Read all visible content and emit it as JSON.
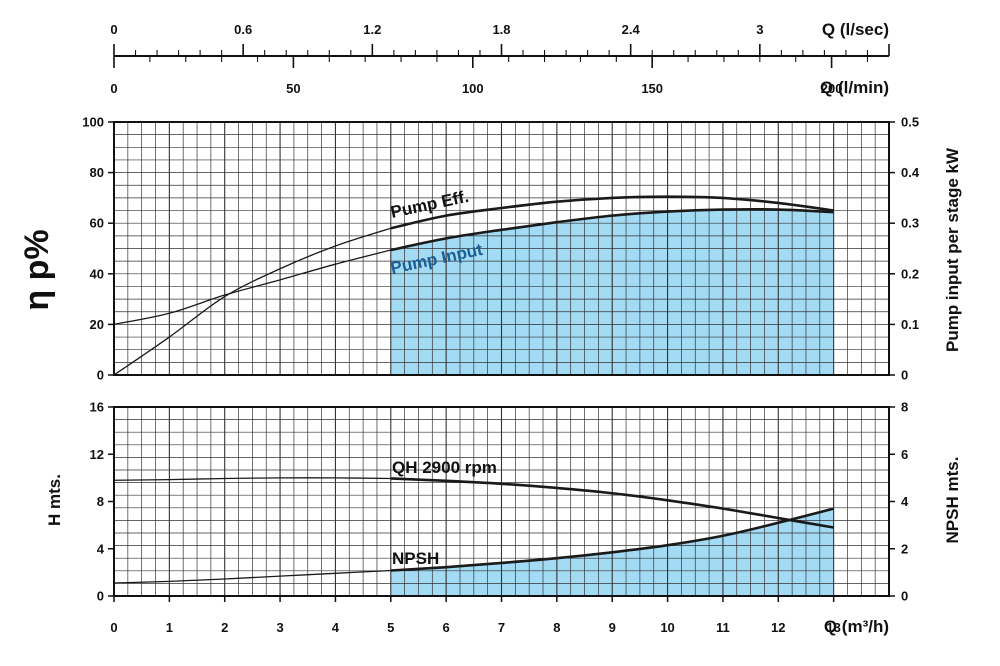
{
  "chart_data": [
    {
      "type": "axis",
      "name": "top-flow-axes",
      "axes": [
        {
          "label": "Q (l/sec)",
          "range": [
            0,
            3.6
          ],
          "ticks": [
            0,
            0.6,
            1.2,
            1.8,
            2.4,
            3
          ],
          "tick_labels": [
            "0",
            "0.6",
            "1.2",
            "1.8",
            "2.4",
            "3"
          ]
        },
        {
          "label": "Q (l/min)",
          "range": [
            0,
            216
          ],
          "ticks": [
            0,
            50,
            100,
            150,
            200
          ],
          "tick_labels": [
            "0",
            "50",
            "100",
            "150",
            "200"
          ]
        }
      ]
    },
    {
      "type": "line",
      "name": "efficiency-power-chart",
      "xlim": [
        0,
        14
      ],
      "ylabel": "η p%",
      "ylim": [
        0,
        100
      ],
      "yticks": [
        "0",
        "20",
        "40",
        "60",
        "80",
        "100"
      ],
      "y2label": "Pump input per stage kW",
      "y2lim": [
        0,
        0.5
      ],
      "y2ticks": [
        "0",
        "0.1",
        "0.2",
        "0.3",
        "0.4",
        "0.5"
      ],
      "grid": true,
      "shaded_region_x": [
        5,
        13
      ],
      "series": [
        {
          "name": "Pump Eff.",
          "axis": "left",
          "x": [
            0,
            1,
            2,
            3,
            4,
            5,
            6,
            7,
            8,
            9,
            10,
            11,
            12,
            13
          ],
          "y": [
            0,
            15,
            31,
            42,
            51,
            58,
            63,
            66,
            68.5,
            70,
            70.5,
            70,
            68,
            65
          ]
        },
        {
          "name": "Pump Input",
          "axis": "right",
          "x": [
            0,
            1,
            2,
            3,
            4,
            5,
            6,
            7,
            8,
            9,
            10,
            11,
            12,
            13
          ],
          "y": [
            0.1,
            0.122,
            0.158,
            0.188,
            0.219,
            0.247,
            0.27,
            0.287,
            0.302,
            0.315,
            0.323,
            0.327,
            0.327,
            0.322
          ]
        }
      ]
    },
    {
      "type": "line",
      "name": "head-npsh-chart",
      "xlabel": "Q (m³/h)",
      "xlim": [
        0,
        14
      ],
      "xticks": [
        "0",
        "1",
        "2",
        "3",
        "4",
        "5",
        "6",
        "7",
        "8",
        "9",
        "10",
        "11",
        "12",
        "13"
      ],
      "ylabel": "H mts.",
      "ylim": [
        0,
        16
      ],
      "yticks": [
        "0",
        "4",
        "8",
        "12",
        "16"
      ],
      "y2label": "NPSH mts.",
      "y2lim": [
        0,
        8
      ],
      "y2ticks": [
        "0",
        "2",
        "4",
        "6",
        "8"
      ],
      "grid": true,
      "shaded_region_x": [
        5,
        13
      ],
      "series": [
        {
          "name": "QH 2900 rpm",
          "axis": "left",
          "x": [
            0,
            1,
            2,
            3,
            4,
            5,
            6,
            7,
            8,
            9,
            10,
            11,
            12,
            13
          ],
          "y": [
            9.8,
            9.85,
            9.95,
            10.0,
            10.0,
            9.95,
            9.75,
            9.5,
            9.15,
            8.7,
            8.1,
            7.4,
            6.6,
            5.8
          ]
        },
        {
          "name": "NPSH",
          "axis": "right",
          "x": [
            0,
            1,
            2,
            3,
            4,
            5,
            6,
            7,
            8,
            9,
            10,
            11,
            12,
            13
          ],
          "y": [
            0.55,
            0.62,
            0.72,
            0.84,
            0.96,
            1.08,
            1.22,
            1.4,
            1.6,
            1.85,
            2.15,
            2.55,
            3.1,
            3.7
          ]
        }
      ]
    }
  ],
  "colors": {
    "fill": "#a3dbf5",
    "text": "#111111",
    "curve": "#1a1a1a",
    "pump_input_label": "#1c5f94",
    "grid": "#333333"
  }
}
